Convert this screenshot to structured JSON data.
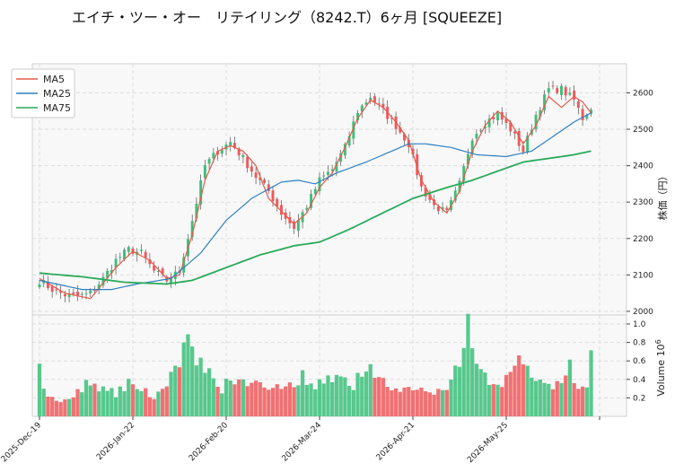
{
  "chart_data": {
    "type": "candlestick",
    "title": "エイチ・ツー・オー　リテイリング（8242.T）6ヶ月 [SQUEEZE]",
    "price_axis": {
      "label": "株価（円）",
      "ylim": [
        1990,
        2680
      ],
      "ticks": [
        2000,
        2100,
        2200,
        2300,
        2400,
        2500,
        2600
      ]
    },
    "volume_axis": {
      "label": "Volume",
      "exponent_label": "10",
      "exponent": "6",
      "ylim": [
        0,
        1.0
      ],
      "ticks": [
        0.2,
        0.4,
        0.6,
        0.8,
        1.0
      ],
      "tick_labels": [
        "0.2",
        "0.4",
        "0.6",
        "0.8",
        "1.0"
      ]
    },
    "x_ticks": [
      {
        "index": 0,
        "label": "2025-Dec-19"
      },
      {
        "index": 22,
        "label": "2026-Jan-22"
      },
      {
        "index": 44,
        "label": "2026-Feb-20"
      },
      {
        "index": 66,
        "label": "2026-Mar-24"
      },
      {
        "index": 88,
        "label": "2026-Apr-21"
      },
      {
        "index": 110,
        "label": "2026-May-25"
      },
      {
        "index": 132,
        "label": ""
      }
    ],
    "x_count": 131,
    "legend": [
      {
        "name": "MA5",
        "color": "#e8584a"
      },
      {
        "name": "MA25",
        "color": "#2f7fc0"
      },
      {
        "name": "MA75",
        "color": "#2aaa5a"
      }
    ],
    "legend_position": "top-left",
    "grid": true,
    "colors": {
      "up": "#3cbf7a",
      "down": "#f0595c"
    },
    "close_anchors": [
      [
        0,
        2085
      ],
      [
        3,
        2060
      ],
      [
        6,
        2045
      ],
      [
        9,
        2040
      ],
      [
        12,
        2050
      ],
      [
        15,
        2090
      ],
      [
        18,
        2140
      ],
      [
        21,
        2170
      ],
      [
        24,
        2160
      ],
      [
        27,
        2110
      ],
      [
        30,
        2085
      ],
      [
        33,
        2110
      ],
      [
        36,
        2250
      ],
      [
        39,
        2400
      ],
      [
        42,
        2440
      ],
      [
        45,
        2465
      ],
      [
        48,
        2420
      ],
      [
        51,
        2370
      ],
      [
        54,
        2330
      ],
      [
        57,
        2270
      ],
      [
        60,
        2230
      ],
      [
        63,
        2290
      ],
      [
        66,
        2360
      ],
      [
        69,
        2390
      ],
      [
        72,
        2450
      ],
      [
        75,
        2550
      ],
      [
        78,
        2590
      ],
      [
        81,
        2550
      ],
      [
        84,
        2510
      ],
      [
        87,
        2460
      ],
      [
        90,
        2340
      ],
      [
        93,
        2290
      ],
      [
        96,
        2270
      ],
      [
        99,
        2350
      ],
      [
        102,
        2480
      ],
      [
        105,
        2520
      ],
      [
        108,
        2540
      ],
      [
        111,
        2500
      ],
      [
        114,
        2440
      ],
      [
        117,
        2540
      ],
      [
        120,
        2610
      ],
      [
        123,
        2610
      ],
      [
        126,
        2580
      ],
      [
        128,
        2530
      ],
      [
        130,
        2560
      ]
    ],
    "ma5_anchors": [
      [
        0,
        2090
      ],
      [
        6,
        2050
      ],
      [
        12,
        2035
      ],
      [
        18,
        2120
      ],
      [
        22,
        2165
      ],
      [
        26,
        2140
      ],
      [
        30,
        2090
      ],
      [
        33,
        2100
      ],
      [
        36,
        2210
      ],
      [
        39,
        2360
      ],
      [
        42,
        2440
      ],
      [
        45,
        2455
      ],
      [
        48,
        2440
      ],
      [
        51,
        2400
      ],
      [
        54,
        2310
      ],
      [
        57,
        2275
      ],
      [
        60,
        2240
      ],
      [
        63,
        2270
      ],
      [
        66,
        2340
      ],
      [
        69,
        2380
      ],
      [
        72,
        2450
      ],
      [
        75,
        2530
      ],
      [
        78,
        2580
      ],
      [
        81,
        2560
      ],
      [
        84,
        2520
      ],
      [
        87,
        2470
      ],
      [
        90,
        2360
      ],
      [
        93,
        2300
      ],
      [
        96,
        2270
      ],
      [
        99,
        2330
      ],
      [
        102,
        2440
      ],
      [
        105,
        2510
      ],
      [
        108,
        2550
      ],
      [
        111,
        2520
      ],
      [
        114,
        2460
      ],
      [
        117,
        2510
      ],
      [
        120,
        2590
      ],
      [
        123,
        2560
      ],
      [
        126,
        2590
      ],
      [
        128,
        2575
      ],
      [
        130,
        2545
      ]
    ],
    "ma25_anchors": [
      [
        0,
        2085
      ],
      [
        10,
        2060
      ],
      [
        17,
        2060
      ],
      [
        23,
        2075
      ],
      [
        31,
        2090
      ],
      [
        38,
        2160
      ],
      [
        44,
        2250
      ],
      [
        50,
        2310
      ],
      [
        57,
        2355
      ],
      [
        61,
        2360
      ],
      [
        65,
        2350
      ],
      [
        70,
        2380
      ],
      [
        77,
        2410
      ],
      [
        83,
        2440
      ],
      [
        87,
        2460
      ],
      [
        91,
        2460
      ],
      [
        97,
        2450
      ],
      [
        103,
        2430
      ],
      [
        110,
        2425
      ],
      [
        116,
        2440
      ],
      [
        121,
        2480
      ],
      [
        126,
        2520
      ],
      [
        130,
        2545
      ]
    ],
    "ma75_anchors": [
      [
        0,
        2105
      ],
      [
        10,
        2095
      ],
      [
        20,
        2080
      ],
      [
        30,
        2075
      ],
      [
        36,
        2085
      ],
      [
        44,
        2120
      ],
      [
        52,
        2155
      ],
      [
        60,
        2180
      ],
      [
        66,
        2190
      ],
      [
        73,
        2225
      ],
      [
        80,
        2265
      ],
      [
        88,
        2310
      ],
      [
        96,
        2340
      ],
      [
        102,
        2360
      ],
      [
        108,
        2385
      ],
      [
        114,
        2410
      ],
      [
        120,
        2420
      ],
      [
        126,
        2430
      ],
      [
        130,
        2440
      ]
    ],
    "volume_anchors": [
      [
        0,
        0.52
      ],
      [
        2,
        0.2
      ],
      [
        5,
        0.16
      ],
      [
        8,
        0.22
      ],
      [
        10,
        0.3
      ],
      [
        12,
        0.38
      ],
      [
        15,
        0.3
      ],
      [
        18,
        0.25
      ],
      [
        21,
        0.35
      ],
      [
        24,
        0.28
      ],
      [
        27,
        0.22
      ],
      [
        29,
        0.32
      ],
      [
        31,
        0.44
      ],
      [
        33,
        0.55
      ],
      [
        34,
        0.74
      ],
      [
        35,
        0.78
      ],
      [
        36,
        0.76
      ],
      [
        37,
        0.65
      ],
      [
        39,
        0.52
      ],
      [
        41,
        0.42
      ],
      [
        43,
        0.28
      ],
      [
        45,
        0.45
      ],
      [
        47,
        0.35
      ],
      [
        50,
        0.42
      ],
      [
        53,
        0.3
      ],
      [
        56,
        0.36
      ],
      [
        59,
        0.32
      ],
      [
        62,
        0.44
      ],
      [
        65,
        0.35
      ],
      [
        68,
        0.38
      ],
      [
        71,
        0.5
      ],
      [
        74,
        0.34
      ],
      [
        77,
        0.55
      ],
      [
        80,
        0.4
      ],
      [
        83,
        0.32
      ],
      [
        86,
        0.28
      ],
      [
        89,
        0.3
      ],
      [
        92,
        0.25
      ],
      [
        95,
        0.3
      ],
      [
        97,
        0.38
      ],
      [
        99,
        0.6
      ],
      [
        100,
        0.72
      ],
      [
        101,
        0.98
      ],
      [
        102,
        0.68
      ],
      [
        104,
        0.55
      ],
      [
        107,
        0.3
      ],
      [
        110,
        0.42
      ],
      [
        112,
        0.52
      ],
      [
        114,
        0.62
      ],
      [
        116,
        0.45
      ],
      [
        118,
        0.38
      ],
      [
        121,
        0.28
      ],
      [
        123,
        0.4
      ],
      [
        125,
        0.55
      ],
      [
        127,
        0.3
      ],
      [
        129,
        0.3
      ],
      [
        130,
        0.74
      ]
    ]
  }
}
